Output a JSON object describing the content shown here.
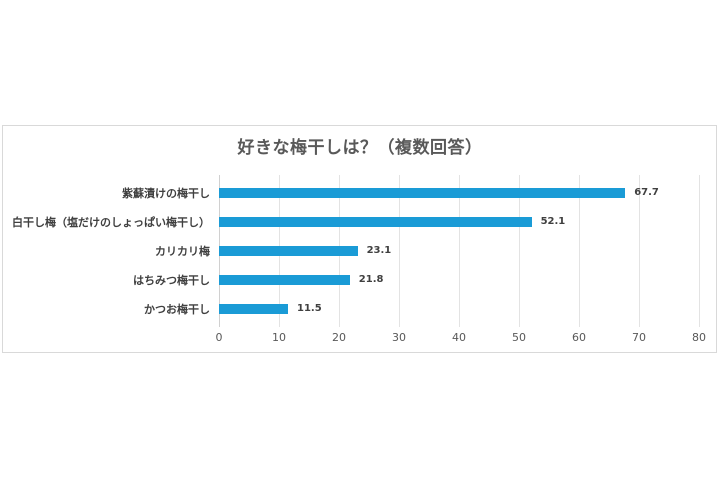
{
  "chart_data": {
    "type": "bar",
    "orientation": "horizontal",
    "title": "好きな梅干しは？（複数回答）",
    "categories": [
      "紫蘇漬けの梅干し",
      "白干し梅（塩だけのしょっぱい梅干し）",
      "カリカリ梅",
      "はちみつ梅干し",
      "かつお梅干し"
    ],
    "values": [
      67.7,
      52.1,
      23.1,
      21.8,
      11.5
    ],
    "value_labels": [
      "67.7",
      "52.1",
      "23.1",
      "21.8",
      "11.5"
    ],
    "xlabel": "",
    "ylabel": "",
    "xlim": [
      0,
      80
    ],
    "x_ticks": [
      "0",
      "10",
      "20",
      "30",
      "40",
      "50",
      "60",
      "70",
      "80"
    ],
    "grid": "vertical",
    "legend": "none",
    "bar_color": "#1a9bd6"
  }
}
